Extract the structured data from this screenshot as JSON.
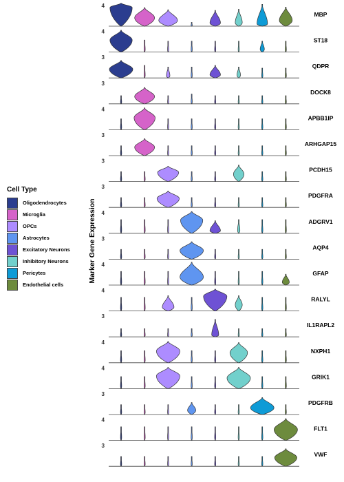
{
  "chart_data": {
    "type": "violin",
    "ylabel": "Marker Gene Expression",
    "legend": {
      "title": "Cell Type",
      "placement": "left",
      "entries": [
        {
          "name": "Oligodendrocytes",
          "color": "#2b3d8f"
        },
        {
          "name": "Microglia",
          "color": "#d563c9"
        },
        {
          "name": "OPCs",
          "color": "#ad8cff"
        },
        {
          "name": "Astrocytes",
          "color": "#5f95f0"
        },
        {
          "name": "Excitatory Neurons",
          "color": "#6e52d4"
        },
        {
          "name": "Inhibitory Neurons",
          "color": "#72d0cc"
        },
        {
          "name": "Pericytes",
          "color": "#0e9bd6"
        },
        {
          "name": "Endothelial cells",
          "color": "#6d8b3d"
        }
      ]
    },
    "genes": [
      {
        "name": "MBP",
        "ymax_label": "4",
        "violins": [
          {
            "max": 4.2,
            "width": 0.95,
            "mode": 0.82
          },
          {
            "max": 3.4,
            "width": 0.85,
            "mode": 0.45
          },
          {
            "max": 3.0,
            "width": 0.8,
            "mode": 0.35
          },
          {
            "max": 0.7,
            "width": 0.05,
            "mode": 0.2
          },
          {
            "max": 2.9,
            "width": 0.45,
            "mode": 0.2
          },
          {
            "max": 3.1,
            "width": 0.3,
            "mode": 0.2
          },
          {
            "max": 4.0,
            "width": 0.45,
            "mode": 0.1
          },
          {
            "max": 3.5,
            "width": 0.55,
            "mode": 0.3
          }
        ]
      },
      {
        "name": "ST18",
        "ymax_label": "4",
        "violins": [
          {
            "max": 4.0,
            "width": 0.95,
            "mode": 0.55
          },
          {
            "max": 2.2,
            "width": 0.05,
            "mode": 0.2
          },
          {
            "max": 2.0,
            "width": 0.05,
            "mode": 0.2
          },
          {
            "max": 2.0,
            "width": 0.05,
            "mode": 0.2
          },
          {
            "max": 2.0,
            "width": 0.05,
            "mode": 0.2
          },
          {
            "max": 2.0,
            "width": 0.05,
            "mode": 0.2
          },
          {
            "max": 2.0,
            "width": 0.18,
            "mode": 0.25
          },
          {
            "max": 2.0,
            "width": 0.05,
            "mode": 0.2
          }
        ]
      },
      {
        "name": "QDPR",
        "ymax_label": "3",
        "violins": [
          {
            "max": 3.2,
            "width": 1.0,
            "mode": 0.5
          },
          {
            "max": 2.3,
            "width": 0.05,
            "mode": 0.2
          },
          {
            "max": 2.0,
            "width": 0.15,
            "mode": 0.2
          },
          {
            "max": 2.0,
            "width": 0.05,
            "mode": 0.2
          },
          {
            "max": 2.3,
            "width": 0.45,
            "mode": 0.25
          },
          {
            "max": 2.0,
            "width": 0.15,
            "mode": 0.25
          },
          {
            "max": 1.8,
            "width": 0.05,
            "mode": 0.2
          },
          {
            "max": 1.8,
            "width": 0.05,
            "mode": 0.2
          }
        ]
      },
      {
        "name": "DOCK8",
        "ymax_label": "3",
        "violins": [
          {
            "max": 1.5,
            "width": 0.05,
            "mode": 0.2
          },
          {
            "max": 3.0,
            "width": 0.85,
            "mode": 0.45
          },
          {
            "max": 1.5,
            "width": 0.05,
            "mode": 0.2
          },
          {
            "max": 1.8,
            "width": 0.05,
            "mode": 0.2
          },
          {
            "max": 1.5,
            "width": 0.05,
            "mode": 0.2
          },
          {
            "max": 1.5,
            "width": 0.05,
            "mode": 0.2
          },
          {
            "max": 1.5,
            "width": 0.05,
            "mode": 0.2
          },
          {
            "max": 1.5,
            "width": 0.05,
            "mode": 0.2
          }
        ]
      },
      {
        "name": "APBB1IP",
        "ymax_label": "4",
        "violins": [
          {
            "max": 2.0,
            "width": 0.05,
            "mode": 0.2
          },
          {
            "max": 4.0,
            "width": 0.9,
            "mode": 0.55
          },
          {
            "max": 2.0,
            "width": 0.05,
            "mode": 0.2
          },
          {
            "max": 2.0,
            "width": 0.05,
            "mode": 0.2
          },
          {
            "max": 2.0,
            "width": 0.05,
            "mode": 0.2
          },
          {
            "max": 2.0,
            "width": 0.05,
            "mode": 0.2
          },
          {
            "max": 2.0,
            "width": 0.05,
            "mode": 0.2
          },
          {
            "max": 2.0,
            "width": 0.05,
            "mode": 0.2
          }
        ]
      },
      {
        "name": "ARHGAP15",
        "ymax_label": "3",
        "violins": [
          {
            "max": 1.8,
            "width": 0.05,
            "mode": 0.2
          },
          {
            "max": 3.1,
            "width": 0.85,
            "mode": 0.5
          },
          {
            "max": 1.8,
            "width": 0.05,
            "mode": 0.2
          },
          {
            "max": 1.8,
            "width": 0.05,
            "mode": 0.2
          },
          {
            "max": 1.8,
            "width": 0.05,
            "mode": 0.2
          },
          {
            "max": 1.8,
            "width": 0.05,
            "mode": 0.2
          },
          {
            "max": 1.8,
            "width": 0.05,
            "mode": 0.2
          },
          {
            "max": 1.8,
            "width": 0.05,
            "mode": 0.2
          }
        ]
      },
      {
        "name": "PCDH15",
        "ymax_label": "3",
        "violins": [
          {
            "max": 1.8,
            "width": 0.05,
            "mode": 0.2
          },
          {
            "max": 1.8,
            "width": 0.05,
            "mode": 0.2
          },
          {
            "max": 2.8,
            "width": 0.9,
            "mode": 0.6
          },
          {
            "max": 1.8,
            "width": 0.05,
            "mode": 0.2
          },
          {
            "max": 1.8,
            "width": 0.05,
            "mode": 0.2
          },
          {
            "max": 3.0,
            "width": 0.45,
            "mode": 0.45
          },
          {
            "max": 1.8,
            "width": 0.05,
            "mode": 0.2
          },
          {
            "max": 1.8,
            "width": 0.05,
            "mode": 0.2
          }
        ]
      },
      {
        "name": "PDGFRA",
        "ymax_label": "3",
        "violins": [
          {
            "max": 1.8,
            "width": 0.05,
            "mode": 0.2
          },
          {
            "max": 1.8,
            "width": 0.05,
            "mode": 0.2
          },
          {
            "max": 3.0,
            "width": 0.95,
            "mode": 0.55
          },
          {
            "max": 1.8,
            "width": 0.05,
            "mode": 0.2
          },
          {
            "max": 1.8,
            "width": 0.05,
            "mode": 0.2
          },
          {
            "max": 1.8,
            "width": 0.05,
            "mode": 0.2
          },
          {
            "max": 1.8,
            "width": 0.05,
            "mode": 0.2
          },
          {
            "max": 1.8,
            "width": 0.05,
            "mode": 0.2
          }
        ]
      },
      {
        "name": "ADGRV1",
        "ymax_label": "4",
        "violins": [
          {
            "max": 2.5,
            "width": 0.05,
            "mode": 0.2
          },
          {
            "max": 2.5,
            "width": 0.05,
            "mode": 0.2
          },
          {
            "max": 2.5,
            "width": 0.05,
            "mode": 0.2
          },
          {
            "max": 4.0,
            "width": 0.95,
            "mode": 0.6
          },
          {
            "max": 2.3,
            "width": 0.45,
            "mode": 0.2
          },
          {
            "max": 2.5,
            "width": 0.1,
            "mode": 0.2
          },
          {
            "max": 2.5,
            "width": 0.05,
            "mode": 0.2
          },
          {
            "max": 2.5,
            "width": 0.05,
            "mode": 0.2
          }
        ]
      },
      {
        "name": "AQP4",
        "ymax_label": "3",
        "violins": [
          {
            "max": 1.8,
            "width": 0.05,
            "mode": 0.2
          },
          {
            "max": 1.8,
            "width": 0.05,
            "mode": 0.2
          },
          {
            "max": 1.8,
            "width": 0.05,
            "mode": 0.2
          },
          {
            "max": 3.2,
            "width": 1.0,
            "mode": 0.5
          },
          {
            "max": 1.8,
            "width": 0.05,
            "mode": 0.2
          },
          {
            "max": 1.8,
            "width": 0.05,
            "mode": 0.2
          },
          {
            "max": 1.8,
            "width": 0.05,
            "mode": 0.2
          },
          {
            "max": 1.8,
            "width": 0.05,
            "mode": 0.2
          }
        ]
      },
      {
        "name": "GFAP",
        "ymax_label": "4",
        "violins": [
          {
            "max": 2.5,
            "width": 0.05,
            "mode": 0.2
          },
          {
            "max": 2.5,
            "width": 0.05,
            "mode": 0.2
          },
          {
            "max": 2.5,
            "width": 0.05,
            "mode": 0.2
          },
          {
            "max": 4.2,
            "width": 1.0,
            "mode": 0.35
          },
          {
            "max": 2.5,
            "width": 0.05,
            "mode": 0.2
          },
          {
            "max": 2.5,
            "width": 0.05,
            "mode": 0.2
          },
          {
            "max": 2.5,
            "width": 0.05,
            "mode": 0.2
          },
          {
            "max": 2.0,
            "width": 0.3,
            "mode": 0.25
          }
        ]
      },
      {
        "name": "RALYL",
        "ymax_label": "4",
        "violins": [
          {
            "max": 2.5,
            "width": 0.05,
            "mode": 0.2
          },
          {
            "max": 2.5,
            "width": 0.05,
            "mode": 0.2
          },
          {
            "max": 2.8,
            "width": 0.5,
            "mode": 0.25
          },
          {
            "max": 2.5,
            "width": 0.05,
            "mode": 0.2
          },
          {
            "max": 4.0,
            "width": 1.0,
            "mode": 0.68
          },
          {
            "max": 2.8,
            "width": 0.3,
            "mode": 0.4
          },
          {
            "max": 2.5,
            "width": 0.05,
            "mode": 0.2
          },
          {
            "max": 2.5,
            "width": 0.05,
            "mode": 0.2
          }
        ]
      },
      {
        "name": "IL1RAPL2",
        "ymax_label": "3",
        "violins": [
          {
            "max": 1.5,
            "width": 0.05,
            "mode": 0.2
          },
          {
            "max": 1.5,
            "width": 0.05,
            "mode": 0.2
          },
          {
            "max": 1.5,
            "width": 0.05,
            "mode": 0.2
          },
          {
            "max": 1.5,
            "width": 0.05,
            "mode": 0.2
          },
          {
            "max": 3.2,
            "width": 0.3,
            "mode": 0.1
          },
          {
            "max": 1.5,
            "width": 0.05,
            "mode": 0.2
          },
          {
            "max": 1.5,
            "width": 0.05,
            "mode": 0.2
          },
          {
            "max": 1.5,
            "width": 0.05,
            "mode": 0.2
          }
        ]
      },
      {
        "name": "NXPH1",
        "ymax_label": "4",
        "violins": [
          {
            "max": 2.2,
            "width": 0.05,
            "mode": 0.2
          },
          {
            "max": 2.2,
            "width": 0.05,
            "mode": 0.2
          },
          {
            "max": 3.9,
            "width": 1.0,
            "mode": 0.55
          },
          {
            "max": 2.2,
            "width": 0.05,
            "mode": 0.2
          },
          {
            "max": 2.2,
            "width": 0.05,
            "mode": 0.2
          },
          {
            "max": 3.7,
            "width": 0.75,
            "mode": 0.5
          },
          {
            "max": 2.2,
            "width": 0.05,
            "mode": 0.2
          },
          {
            "max": 2.2,
            "width": 0.05,
            "mode": 0.2
          }
        ]
      },
      {
        "name": "GRIK1",
        "ymax_label": "4",
        "violins": [
          {
            "max": 2.2,
            "width": 0.05,
            "mode": 0.2
          },
          {
            "max": 2.2,
            "width": 0.05,
            "mode": 0.2
          },
          {
            "max": 3.9,
            "width": 1.0,
            "mode": 0.6
          },
          {
            "max": 2.2,
            "width": 0.05,
            "mode": 0.2
          },
          {
            "max": 2.2,
            "width": 0.05,
            "mode": 0.2
          },
          {
            "max": 3.9,
            "width": 1.0,
            "mode": 0.5
          },
          {
            "max": 2.2,
            "width": 0.05,
            "mode": 0.2
          },
          {
            "max": 2.2,
            "width": 0.05,
            "mode": 0.2
          }
        ]
      },
      {
        "name": "PDGFRB",
        "ymax_label": "3",
        "violins": [
          {
            "max": 1.8,
            "width": 0.05,
            "mode": 0.2
          },
          {
            "max": 1.8,
            "width": 0.05,
            "mode": 0.2
          },
          {
            "max": 1.8,
            "width": 0.05,
            "mode": 0.2
          },
          {
            "max": 2.2,
            "width": 0.35,
            "mode": 0.35
          },
          {
            "max": 1.8,
            "width": 0.05,
            "mode": 0.2
          },
          {
            "max": 1.8,
            "width": 0.05,
            "mode": 0.2
          },
          {
            "max": 3.1,
            "width": 1.0,
            "mode": 0.4
          },
          {
            "max": 1.8,
            "width": 0.05,
            "mode": 0.2
          }
        ]
      },
      {
        "name": "FLT1",
        "ymax_label": "4",
        "violins": [
          {
            "max": 2.5,
            "width": 0.05,
            "mode": 0.2
          },
          {
            "max": 2.5,
            "width": 0.05,
            "mode": 0.2
          },
          {
            "max": 2.5,
            "width": 0.05,
            "mode": 0.2
          },
          {
            "max": 2.5,
            "width": 0.05,
            "mode": 0.2
          },
          {
            "max": 2.5,
            "width": 0.05,
            "mode": 0.2
          },
          {
            "max": 2.5,
            "width": 0.05,
            "mode": 0.2
          },
          {
            "max": 2.5,
            "width": 0.05,
            "mode": 0.2
          },
          {
            "max": 4.0,
            "width": 1.0,
            "mode": 0.5
          }
        ]
      },
      {
        "name": "VWF",
        "ymax_label": "3",
        "violins": [
          {
            "max": 1.8,
            "width": 0.05,
            "mode": 0.2
          },
          {
            "max": 1.8,
            "width": 0.05,
            "mode": 0.2
          },
          {
            "max": 1.8,
            "width": 0.05,
            "mode": 0.2
          },
          {
            "max": 1.8,
            "width": 0.05,
            "mode": 0.2
          },
          {
            "max": 1.8,
            "width": 0.05,
            "mode": 0.2
          },
          {
            "max": 1.8,
            "width": 0.05,
            "mode": 0.2
          },
          {
            "max": 1.8,
            "width": 0.05,
            "mode": 0.2
          },
          {
            "max": 3.2,
            "width": 0.95,
            "mode": 0.5
          }
        ]
      }
    ]
  }
}
